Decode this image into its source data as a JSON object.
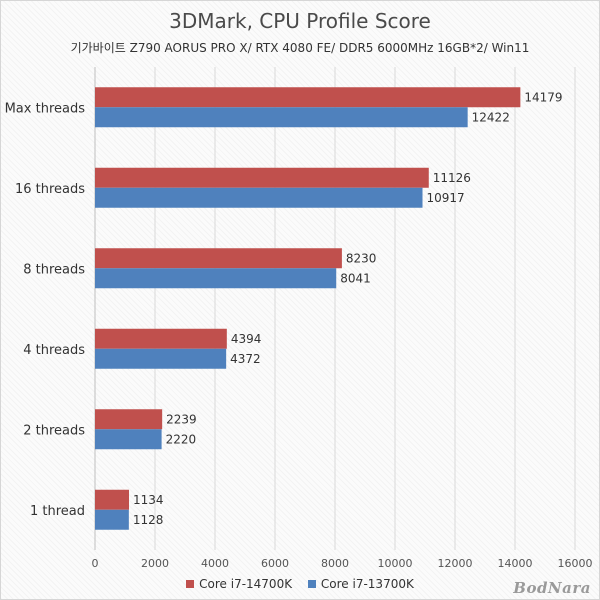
{
  "chart_data": {
    "type": "bar",
    "orientation": "horizontal",
    "title": "3DMark, CPU Profile Score",
    "subtitle": "기가바이트 Z790 AORUS PRO X/ RTX 4080 FE/ DDR5 6000MHz 16GB*2/ Win11",
    "categories": [
      "Max threads",
      "16 threads",
      "8 threads",
      "4 threads",
      "2 threads",
      "1 thread"
    ],
    "series": [
      {
        "name": "Core i7-14700K",
        "color": "#c0504d",
        "values": [
          14179,
          11126,
          8230,
          4394,
          2239,
          1134
        ]
      },
      {
        "name": "Core i7-13700K",
        "color": "#4f81bd",
        "values": [
          12422,
          10917,
          8041,
          4372,
          2220,
          1128
        ]
      }
    ],
    "xlim": [
      0,
      16000
    ],
    "xticks": [
      0,
      2000,
      4000,
      6000,
      8000,
      10000,
      12000,
      14000,
      16000
    ],
    "grid": true,
    "legend": "bottom"
  },
  "watermark": "BodNara"
}
